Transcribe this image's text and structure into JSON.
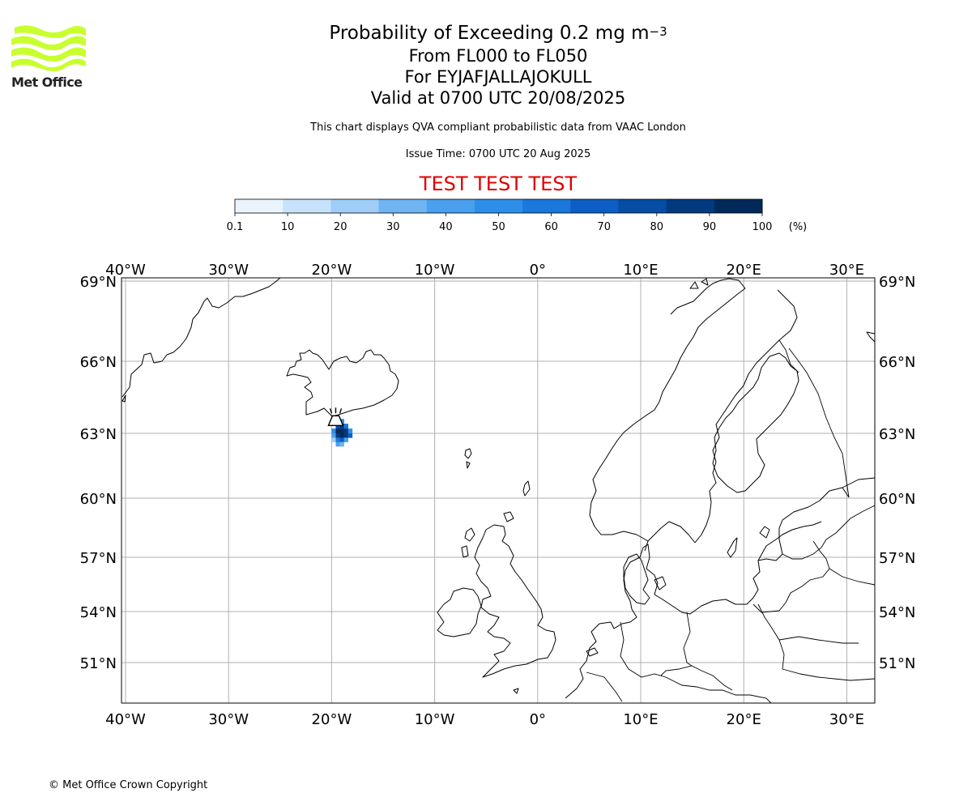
{
  "logo": {
    "text": "Met Office",
    "icon": "met-office-wave-logo",
    "color": "#c8ff2e"
  },
  "title": {
    "main_prefix": "Probability of Exceeding 0.2 mg m",
    "main_exponent": "−3",
    "levels": "From FL000 to FL050",
    "volcano": "For EYJAFJALLAJOKULL",
    "valid": "Valid at 0700 UTC 20/08/2025"
  },
  "info": {
    "description": "This chart displays QVA compliant probabilistic data from VAAC London",
    "issue_time": "Issue Time: 0700 UTC 20 Aug 2025"
  },
  "banner": "TEST TEST TEST",
  "colorbar": {
    "ticks": [
      "0.1",
      "10",
      "20",
      "30",
      "40",
      "50",
      "60",
      "70",
      "80",
      "90",
      "100"
    ],
    "unit": "(%)",
    "colors": [
      "#eaf4fd",
      "#c6e3fb",
      "#a0cdf7",
      "#70b4f2",
      "#4aa0ee",
      "#2d8eea",
      "#1a77dc",
      "#0d5ec4",
      "#064da4",
      "#023a7f",
      "#012a5b"
    ]
  },
  "map": {
    "lon_range": [
      -40.5,
      32.5
    ],
    "lat_range": [
      49.0,
      69.2
    ],
    "lon_ticks": [
      "40°W",
      "30°W",
      "20°W",
      "10°W",
      "0°",
      "10°E",
      "20°E",
      "30°E"
    ],
    "lon_values": [
      -40,
      -30,
      -20,
      -10,
      0,
      10,
      20,
      30
    ],
    "lat_ticks": [
      "51°N",
      "54°N",
      "57°N",
      "60°N",
      "63°N",
      "66°N",
      "69°N"
    ],
    "lat_values": [
      51,
      54,
      57,
      60,
      63,
      66,
      69
    ],
    "volcano_marker": {
      "name": "volcano-icon",
      "lon": -19.6,
      "lat": 63.63
    },
    "ash_cells": [
      {
        "lon": -19.6,
        "lat": 63.4,
        "cls": 4
      },
      {
        "lon": -19.2,
        "lat": 63.4,
        "cls": 5
      },
      {
        "lon": -19.6,
        "lat": 63.2,
        "cls": 8
      },
      {
        "lon": -19.2,
        "lat": 63.2,
        "cls": 9
      },
      {
        "lon": -18.8,
        "lat": 63.2,
        "cls": 6
      },
      {
        "lon": -20.0,
        "lat": 63.0,
        "cls": 5
      },
      {
        "lon": -19.6,
        "lat": 63.0,
        "cls": 10
      },
      {
        "lon": -19.2,
        "lat": 63.0,
        "cls": 10
      },
      {
        "lon": -18.8,
        "lat": 63.0,
        "cls": 9
      },
      {
        "lon": -18.4,
        "lat": 63.0,
        "cls": 5
      },
      {
        "lon": -20.0,
        "lat": 62.8,
        "cls": 4
      },
      {
        "lon": -19.6,
        "lat": 62.8,
        "cls": 9
      },
      {
        "lon": -19.2,
        "lat": 62.8,
        "cls": 10
      },
      {
        "lon": -18.8,
        "lat": 62.8,
        "cls": 9
      },
      {
        "lon": -18.4,
        "lat": 62.8,
        "cls": 7
      },
      {
        "lon": -20.0,
        "lat": 62.6,
        "cls": 2
      },
      {
        "lon": -19.6,
        "lat": 62.6,
        "cls": 6
      },
      {
        "lon": -19.2,
        "lat": 62.6,
        "cls": 7
      },
      {
        "lon": -18.8,
        "lat": 62.6,
        "cls": 4
      },
      {
        "lon": -19.6,
        "lat": 62.4,
        "cls": 4
      },
      {
        "lon": -19.2,
        "lat": 62.4,
        "cls": 3
      }
    ]
  },
  "copyright": "© Met Office Crown Copyright"
}
